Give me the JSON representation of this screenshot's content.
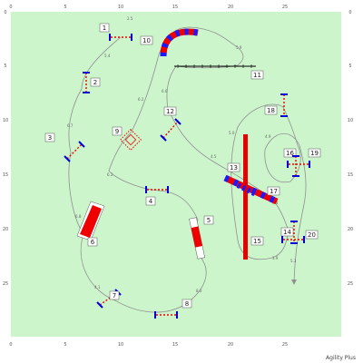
{
  "app": {
    "footer_label": "Agility Plus"
  },
  "colors": {
    "field": "#ccf5cc",
    "path": "#909090",
    "bar_red": "#ee0000",
    "bar_blue": "#1a1aff",
    "stand_blue": "#0000dd"
  },
  "axes": {
    "x_ticks": [
      "0",
      "5",
      "10",
      "15",
      "20",
      "25"
    ],
    "y_ticks": [
      "0",
      "5",
      "10",
      "15",
      "20",
      "25"
    ]
  },
  "obstacles": [
    {
      "number": "1",
      "type": "jump"
    },
    {
      "number": "2",
      "type": "jump"
    },
    {
      "number": "3",
      "type": "jump"
    },
    {
      "number": "4",
      "type": "jump"
    },
    {
      "number": "5",
      "type": "tire"
    },
    {
      "number": "6",
      "type": "tunnel"
    },
    {
      "number": "7",
      "type": "jump"
    },
    {
      "number": "8",
      "type": "jump"
    },
    {
      "number": "9",
      "type": "seesaw"
    },
    {
      "number": "10",
      "type": "tunnel"
    },
    {
      "number": "11",
      "type": "weave"
    },
    {
      "number": "12",
      "type": "jump"
    },
    {
      "number": "13",
      "type": "tunnel"
    },
    {
      "number": "14",
      "type": "jump"
    },
    {
      "number": "15",
      "type": "dogwalk"
    },
    {
      "number": "16",
      "type": "jump"
    },
    {
      "number": "17",
      "type": "tunnel"
    },
    {
      "number": "18",
      "type": "jump"
    },
    {
      "number": "19",
      "type": "jump"
    },
    {
      "number": "20",
      "type": "jump"
    }
  ],
  "distances": [
    "2.5",
    "5.4",
    "6.7",
    "6.2",
    "6.6",
    "5.9",
    "4.5",
    "6.2",
    "6.8",
    "4.1",
    "5.0",
    "4.9",
    "8.0",
    "4.4",
    "3.9",
    "5.3"
  ]
}
